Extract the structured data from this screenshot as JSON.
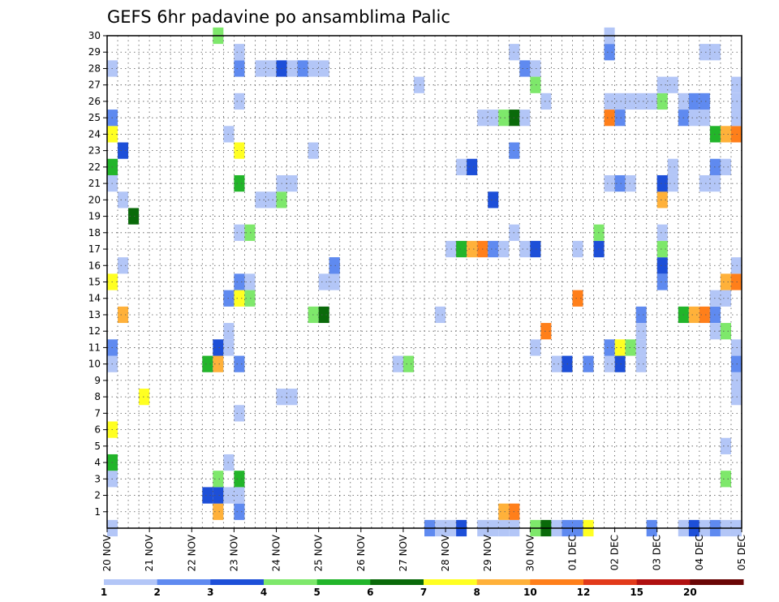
{
  "chart_data": {
    "type": "heatmap",
    "title": "GEFS 6hr padavine po ansamblima Palic",
    "xlabel": "",
    "ylabel": "",
    "x_tick_labels": [
      "20 NOV",
      "21 NOV",
      "22 NOV",
      "23 NOV",
      "24 NOV",
      "25 NOV",
      "26 NOV",
      "27 NOV",
      "28 NOV",
      "29 NOV",
      "30 NOV",
      "01 DEC",
      "02 DEC",
      "03 DEC",
      "04 DEC",
      "05 DEC"
    ],
    "y_tick_labels": [
      "1",
      "2",
      "3",
      "4",
      "5",
      "6",
      "7",
      "8",
      "9",
      "10",
      "11",
      "12",
      "13",
      "14",
      "15",
      "16",
      "17",
      "18",
      "19",
      "20",
      "21",
      "22",
      "23",
      "24",
      "25",
      "26",
      "27",
      "28",
      "29",
      "30"
    ],
    "xlim": [
      0,
      60
    ],
    "ylim": [
      0,
      30
    ],
    "x_unit_note": "x index = 6-hour steps from 20 NOV 00z",
    "grid": true,
    "colorbar": {
      "labels": [
        "1",
        "2",
        "3",
        "4",
        "5",
        "6",
        "7",
        "8",
        "10",
        "12",
        "15",
        "20"
      ],
      "colors": [
        "#b3c6f7",
        "#5f8af0",
        "#1d4fd8",
        "#7ee86b",
        "#22b52a",
        "#0a6a0a",
        "#ffff22",
        "#ffb13a",
        "#ff7f1a",
        "#e23a1a",
        "#b01010",
        "#6a0606"
      ]
    },
    "cells": [
      [
        0,
        0
      ],
      [
        0,
        3
      ],
      [
        0,
        4
      ],
      [
        0,
        6
      ],
      [
        0,
        10
      ],
      [
        0,
        11
      ],
      [
        0,
        15
      ],
      [
        1,
        16
      ],
      [
        1,
        20
      ],
      [
        0,
        21
      ],
      [
        0,
        22
      ],
      [
        1,
        23
      ],
      [
        0,
        24
      ],
      [
        0,
        25
      ],
      [
        0,
        28
      ],
      [
        1,
        13
      ],
      [
        2,
        19
      ],
      [
        3,
        8
      ],
      [
        10,
        1
      ],
      [
        10,
        2
      ],
      [
        9,
        2
      ],
      [
        10,
        3
      ],
      [
        11,
        4
      ],
      [
        11,
        2
      ],
      [
        12,
        1
      ],
      [
        12,
        2
      ],
      [
        12,
        3
      ],
      [
        9,
        10
      ],
      [
        10,
        10
      ],
      [
        10,
        11
      ],
      [
        11,
        11
      ],
      [
        11,
        12
      ],
      [
        10,
        30
      ],
      [
        12,
        7
      ],
      [
        12,
        10
      ],
      [
        12,
        14
      ],
      [
        13,
        15
      ],
      [
        11,
        14
      ],
      [
        12,
        15
      ],
      [
        13,
        14
      ],
      [
        12,
        18
      ],
      [
        13,
        18
      ],
      [
        12,
        21
      ],
      [
        12,
        23
      ],
      [
        11,
        24
      ],
      [
        12,
        26
      ],
      [
        12,
        28
      ],
      [
        12,
        29
      ],
      [
        14,
        20
      ],
      [
        15,
        20
      ],
      [
        16,
        20
      ],
      [
        16,
        21
      ],
      [
        17,
        21
      ],
      [
        14,
        28
      ],
      [
        15,
        28
      ],
      [
        16,
        28
      ],
      [
        17,
        28
      ],
      [
        18,
        28
      ],
      [
        19,
        28
      ],
      [
        20,
        28
      ],
      [
        16,
        8
      ],
      [
        17,
        8
      ],
      [
        19,
        23
      ],
      [
        19,
        13
      ],
      [
        20,
        13
      ],
      [
        21,
        16
      ],
      [
        21,
        15
      ],
      [
        21,
        16
      ],
      [
        20,
        15
      ],
      [
        27,
        10
      ],
      [
        28,
        10
      ],
      [
        29,
        27
      ],
      [
        31,
        0
      ],
      [
        30,
        0
      ],
      [
        32,
        0
      ],
      [
        33,
        0
      ],
      [
        35,
        0
      ],
      [
        36,
        0
      ],
      [
        37,
        0
      ],
      [
        38,
        0
      ],
      [
        40,
        0
      ],
      [
        41,
        0
      ],
      [
        42,
        0
      ],
      [
        43,
        0
      ],
      [
        44,
        0
      ],
      [
        45,
        0
      ],
      [
        31,
        13
      ],
      [
        32,
        17
      ],
      [
        33,
        17
      ],
      [
        34,
        17
      ],
      [
        35,
        17
      ],
      [
        36,
        17
      ],
      [
        37,
        17
      ],
      [
        38,
        18
      ],
      [
        39,
        17
      ],
      [
        40,
        17
      ],
      [
        33,
        22
      ],
      [
        34,
        22
      ],
      [
        35,
        25
      ],
      [
        36,
        25
      ],
      [
        37,
        25
      ],
      [
        36,
        20
      ],
      [
        38,
        23
      ],
      [
        38,
        25
      ],
      [
        39,
        25
      ],
      [
        37,
        1
      ],
      [
        38,
        1
      ],
      [
        38,
        29
      ],
      [
        39,
        28
      ],
      [
        40,
        28
      ],
      [
        41,
        26
      ],
      [
        40,
        27
      ],
      [
        40,
        11
      ],
      [
        41,
        12
      ],
      [
        42,
        10
      ],
      [
        43,
        10
      ],
      [
        44,
        14
      ],
      [
        44,
        17
      ],
      [
        45,
        10
      ],
      [
        46,
        17
      ],
      [
        46,
        18
      ],
      [
        47,
        25
      ],
      [
        47,
        26
      ],
      [
        48,
        25
      ],
      [
        48,
        26
      ],
      [
        47,
        29
      ],
      [
        47,
        30
      ],
      [
        47,
        21
      ],
      [
        48,
        21
      ],
      [
        49,
        21
      ],
      [
        48,
        10
      ],
      [
        47,
        10
      ],
      [
        47,
        11
      ],
      [
        48,
        11
      ],
      [
        49,
        11
      ],
      [
        50,
        10
      ],
      [
        50,
        11
      ],
      [
        50,
        12
      ],
      [
        50,
        13
      ],
      [
        51,
        0
      ],
      [
        49,
        26
      ],
      [
        50,
        26
      ],
      [
        51,
        26
      ],
      [
        52,
        26
      ],
      [
        52,
        21
      ],
      [
        53,
        21
      ],
      [
        53,
        22
      ],
      [
        52,
        15
      ],
      [
        52,
        16
      ],
      [
        52,
        17
      ],
      [
        52,
        18
      ],
      [
        52,
        20
      ],
      [
        52,
        21
      ],
      [
        52,
        27
      ],
      [
        53,
        27
      ],
      [
        54,
        13
      ],
      [
        55,
        13
      ],
      [
        56,
        13
      ],
      [
        57,
        13
      ],
      [
        57,
        12
      ],
      [
        58,
        12
      ],
      [
        54,
        0
      ],
      [
        55,
        0
      ],
      [
        56,
        0
      ],
      [
        57,
        0
      ],
      [
        58,
        0
      ],
      [
        59,
        0
      ],
      [
        54,
        25
      ],
      [
        54,
        26
      ],
      [
        55,
        25
      ],
      [
        55,
        26
      ],
      [
        56,
        25
      ],
      [
        56,
        26
      ],
      [
        56,
        29
      ],
      [
        57,
        29
      ],
      [
        57,
        24
      ],
      [
        58,
        24
      ],
      [
        56,
        21
      ],
      [
        57,
        21
      ],
      [
        57,
        22
      ],
      [
        58,
        22
      ],
      [
        58,
        3
      ],
      [
        58,
        5
      ],
      [
        59,
        9
      ],
      [
        59,
        8
      ],
      [
        59,
        10
      ],
      [
        59,
        11
      ],
      [
        57,
        14
      ],
      [
        58,
        14
      ],
      [
        58,
        15
      ],
      [
        59,
        15
      ],
      [
        59,
        16
      ],
      [
        59,
        24
      ],
      [
        59,
        25
      ],
      [
        59,
        26
      ],
      [
        59,
        27
      ]
    ]
  }
}
